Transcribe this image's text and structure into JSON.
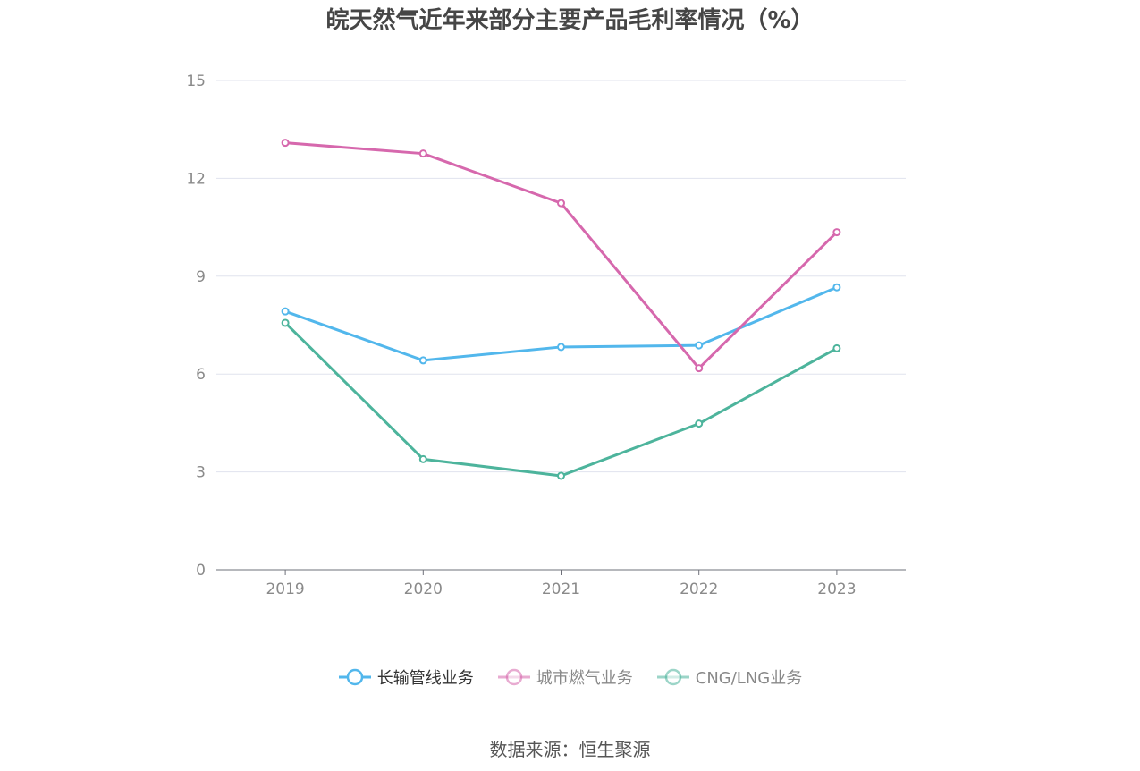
{
  "chart_data": {
    "type": "line",
    "title": "皖天然气近年来部分主要产品毛利率情况（%）",
    "categories": [
      "2019",
      "2020",
      "2021",
      "2022",
      "2023"
    ],
    "series": [
      {
        "name": "长输管线业务",
        "color": "#52b7ec",
        "values": [
          7.92,
          6.42,
          6.83,
          6.88,
          8.66
        ]
      },
      {
        "name": "城市燃气业务",
        "color": "#d668ad",
        "values": [
          13.09,
          12.76,
          11.24,
          6.18,
          10.35
        ]
      },
      {
        "name": "CNG/LNG业务",
        "color": "#4db49c",
        "values": [
          7.57,
          3.39,
          2.88,
          4.48,
          6.79
        ]
      }
    ],
    "ylim": [
      0,
      15
    ],
    "yticks": [
      "0",
      "3",
      "6",
      "9",
      "12",
      "15"
    ],
    "grid": true,
    "legend_position": "bottom",
    "legend_active_color": "#333333",
    "legend_inactive_color": "#888888",
    "source": "数据来源：恒生聚源"
  }
}
